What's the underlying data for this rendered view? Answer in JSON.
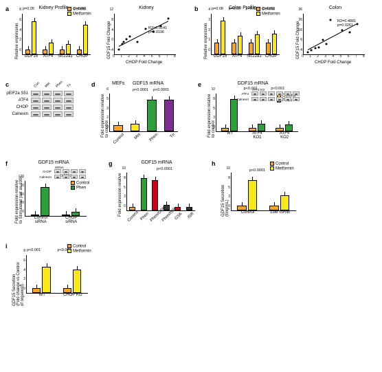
{
  "colors": {
    "control": "#f6a623",
    "metformin": "#f8e71c",
    "phen": "#2e9e3a",
    "tn": "#7b2d90",
    "gsk": "#d0021b",
    "isr_alt": "#333333"
  },
  "panel_a": {
    "label": "a",
    "bar": {
      "title": "Kidney Profile",
      "ylab": "Relative expression",
      "categories": [
        "GDF15",
        "ATF4",
        "Slc22a1",
        "CHOP"
      ],
      "ymax": 8,
      "series": {
        "Control": [
          1,
          1,
          1,
          1
        ],
        "Metformin": [
          6.5,
          2.3,
          2.1,
          5.8
        ]
      },
      "pvals": {
        "GDF15": "p=0.05",
        "CHOP": "p=0.06"
      },
      "legend": [
        "Control",
        "Metformin"
      ]
    },
    "scatter": {
      "title": "Kidney",
      "xlab": "CHOP Fold Change",
      "ylab": "GDF15 Fold Change",
      "xlim": [
        0,
        8
      ],
      "ylim": [
        -4,
        12
      ],
      "annot": "R2=0.5141\np=0.0196",
      "points": [
        [
          0.5,
          -2
        ],
        [
          1,
          0
        ],
        [
          1.2,
          1
        ],
        [
          1.5,
          2
        ],
        [
          2,
          3
        ],
        [
          3,
          1
        ],
        [
          4,
          6
        ],
        [
          5,
          5
        ],
        [
          6,
          7
        ],
        [
          7,
          10
        ]
      ],
      "line": {
        "x1": 0.5,
        "y1": -1,
        "x2": 7,
        "y2": 9
      }
    }
  },
  "panel_b": {
    "label": "b",
    "bar": {
      "title": "Colon Profile",
      "ylab": "Relative expression",
      "categories": [
        "GDF15",
        "ATF4",
        "Slc22a1",
        "CHOP"
      ],
      "ymax": 3.5,
      "series": {
        "Control": [
          1,
          1,
          1,
          1
        ],
        "Metformin": [
          2.9,
          1.6,
          1.7,
          1.8
        ]
      },
      "pvals": {
        "GDF15": "p=0.08",
        "ATF4": "p=0.03",
        "Slc22a1": "p=0.02",
        "CHOP": "p=0.01"
      },
      "legend": [
        "Control",
        "Metformin"
      ]
    },
    "scatter": {
      "title": "Colon",
      "xlab": "CHOP Fold Change",
      "ylab": "GDF15 Fold Change",
      "xlim": [
        0,
        8
      ],
      "ylim": [
        -4,
        36
      ],
      "annot": "R2=0.4881\np=0.0261",
      "points": [
        [
          0.5,
          -2
        ],
        [
          1,
          0
        ],
        [
          1.5,
          2
        ],
        [
          2,
          3
        ],
        [
          2.5,
          10
        ],
        [
          3,
          6
        ],
        [
          3.5,
          30
        ],
        [
          5,
          20
        ],
        [
          6,
          18
        ],
        [
          7,
          26
        ]
      ],
      "line": {
        "x1": 0.5,
        "y1": 0,
        "x2": 7,
        "y2": 26
      }
    }
  },
  "panel_c": {
    "label": "c",
    "cols": [
      "Con",
      "Met",
      "Phen",
      "Tn"
    ],
    "rows": [
      "pEIF2a S51",
      "ATF4",
      "CHOP",
      "Calnexin"
    ]
  },
  "panel_d": {
    "label": "d",
    "title_left": "MEFs",
    "title": "GDF15 mRNA",
    "ylab": "Fold expression relative\nto control",
    "categories": [
      "Control",
      "Met",
      "Phen",
      "Tn"
    ],
    "ymax": 6,
    "values": [
      1,
      1.2,
      5,
      5
    ],
    "colors_key": [
      "control",
      "metformin",
      "phen",
      "tn"
    ],
    "pvals": [
      "p<0.0001",
      "p<0.0001"
    ]
  },
  "panel_e": {
    "label": "e",
    "title": "GDF15 mRNA",
    "ylab": "Fold expression relative\nto control",
    "categories": [
      "WT",
      "ATF4\nKO1",
      "ATF4\nKO2"
    ],
    "ymax": 10,
    "series": {
      "Control": [
        1,
        1,
        1
      ],
      "Phen": [
        8.5,
        2,
        1.8
      ]
    },
    "pvals": {
      "ATF4\nKO1": "p<0.001",
      "ATF4\nKO2": "p<0.001"
    },
    "legend": [
      "Control",
      "Phen"
    ],
    "inset_rows": [
      "ATF4",
      "Calnexin"
    ],
    "inset_cols": [
      "",
      "",
      "ATF4 KO",
      "",
      "",
      ""
    ]
  },
  "panel_f": {
    "label": "f",
    "title": "GDF15 mRNA",
    "ylab": "Fold expression relative\nto Stimulated (set as 100)",
    "categories": [
      "Control\nsiRNA",
      "CHOP\nsiRNA"
    ],
    "ymax": 120,
    "series": {
      "Control": [
        5,
        5
      ],
      "Phen": [
        100,
        15
      ]
    },
    "pvals": {
      "CHOP\nsiRNA": "p<0.0001"
    },
    "legend": [
      "Control",
      "Phen"
    ],
    "inset_rows": [
      "CHOP",
      "Calnexin"
    ],
    "inset_head": "siRNA",
    "inset_cols": [
      "Con",
      "",
      "CHOP",
      ""
    ]
  },
  "panel_g": {
    "label": "g",
    "title": "GDF15 mRNA",
    "ylab": "Fold expression relative",
    "categories": [
      "Control",
      "Phen",
      "Phen/GSK",
      "Phen/ISR",
      "GSK",
      "ISR"
    ],
    "ymax": 10,
    "values": [
      1,
      8.5,
      8,
      1.5,
      1,
      1
    ],
    "colors_key": [
      "control",
      "phen",
      "gsk",
      "isr_alt",
      "gsk",
      "isr_alt"
    ],
    "pval": "p<0.0001"
  },
  "panel_h": {
    "label": "h",
    "title": "",
    "ylab": "GDF15 Secretion\n(Eng/mL)",
    "categories": [
      "Control",
      "1uM ISRIB"
    ],
    "ymax": 10,
    "series": {
      "Control": [
        1.3,
        1.2
      ],
      "Metformin": [
        8,
        4
      ]
    },
    "pval": "p<0.0001",
    "legend": [
      "Control",
      "Metformin"
    ]
  },
  "panel_i": {
    "label": "i",
    "title": "",
    "ylab": "GDF15 Secretion\n(Fold change vs Control\nof organoid)",
    "categories": [
      "WT",
      "CHOP KO"
    ],
    "ymax": 8,
    "series": {
      "Control": [
        1,
        1
      ],
      "Metformin": [
        5.5,
        5
      ]
    },
    "pvals": {
      "WT": "p<0.001",
      "CHOP KO": "p<0.001"
    },
    "legend": [
      "Control",
      "Metformin"
    ]
  }
}
